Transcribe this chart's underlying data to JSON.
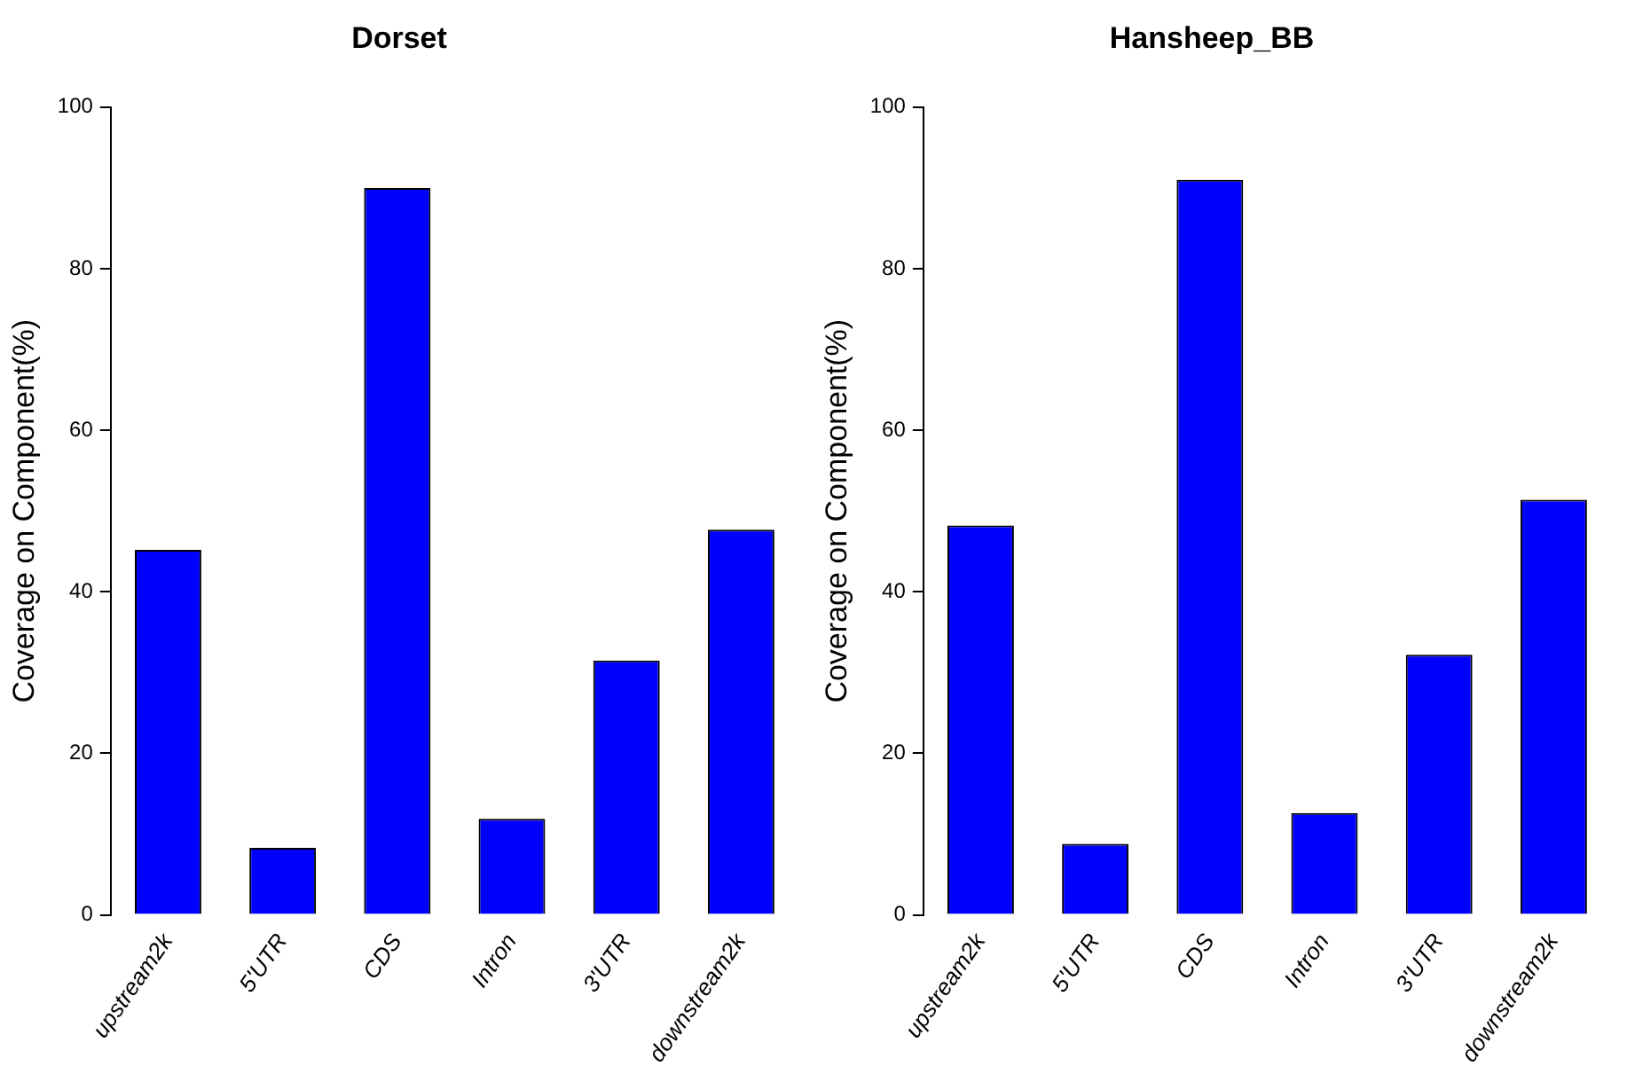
{
  "chart_data": [
    {
      "type": "bar",
      "title": "Dorset",
      "ylabel": "Coverage on Component(%)",
      "categories": [
        "upstream2k",
        "5'UTR",
        "CDS",
        "Intron",
        "3'UTR",
        "downstream2k"
      ],
      "values": [
        45.2,
        8.3,
        90,
        11.9,
        31.5,
        47.7
      ],
      "color": "#0000ff",
      "ylim": [
        0,
        100
      ],
      "yticks": [
        0,
        20,
        40,
        60,
        80,
        100
      ],
      "grid": false
    },
    {
      "type": "bar",
      "title": "Hansheep_BB",
      "ylabel": "Coverage on Component(%)",
      "categories": [
        "upstream2k",
        "5'UTR",
        "CDS",
        "Intron",
        "3'UTR",
        "downstream2k"
      ],
      "values": [
        48.2,
        8.8,
        91,
        12.6,
        32.2,
        51.4
      ],
      "color": "#0000ff",
      "ylim": [
        0,
        100
      ],
      "yticks": [
        0,
        20,
        40,
        60,
        80,
        100
      ],
      "grid": false
    }
  ]
}
